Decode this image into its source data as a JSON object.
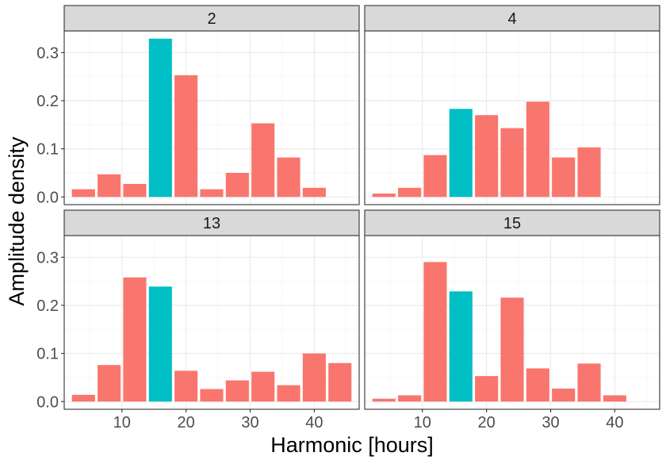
{
  "colors": {
    "bar_default": "#F8766D",
    "bar_highlight": "#00BFC4",
    "strip_bg": "#D9D9D9",
    "panel_border": "#333333",
    "grid_major": "#EBEBEB",
    "grid_minor": "#F5F5F5",
    "text": "#1A1A1A",
    "tick_text": "#4D4D4D"
  },
  "chart_data": {
    "type": "bar",
    "title": "",
    "xlabel": "Harmonic [hours]",
    "ylabel": "Amplitude density",
    "xlim": [
      1,
      47
    ],
    "ylim": [
      -0.016,
      0.345
    ],
    "x_ticks": [
      10,
      20,
      30,
      40
    ],
    "x_tick_labels": [
      "10",
      "20",
      "30",
      "40"
    ],
    "y_ticks": [
      0.0,
      0.1,
      0.2,
      0.3
    ],
    "y_tick_labels": [
      "0.0",
      "0.1",
      "0.2",
      "0.3"
    ],
    "grid": true,
    "legend": "none",
    "bar_width": 3.6,
    "highlight_rule": "bar centered at x = 16 is drawn in the highlight color",
    "facets": [
      {
        "label": "2",
        "x": [
          4,
          8,
          12,
          16,
          20,
          24,
          28,
          32,
          36,
          40
        ],
        "values": [
          0.016,
          0.047,
          0.027,
          0.329,
          0.253,
          0.016,
          0.05,
          0.153,
          0.082,
          0.019
        ]
      },
      {
        "label": "4",
        "x": [
          4,
          8,
          12,
          16,
          20,
          24,
          28,
          32,
          36
        ],
        "values": [
          0.007,
          0.019,
          0.087,
          0.183,
          0.17,
          0.143,
          0.198,
          0.082,
          0.103
        ]
      },
      {
        "label": "13",
        "x": [
          4,
          8,
          12,
          16,
          20,
          24,
          28,
          32,
          36,
          40,
          44
        ],
        "values": [
          0.014,
          0.076,
          0.258,
          0.239,
          0.064,
          0.026,
          0.044,
          0.062,
          0.034,
          0.1,
          0.08
        ]
      },
      {
        "label": "15",
        "x": [
          4,
          8,
          12,
          16,
          20,
          24,
          28,
          32,
          36,
          40
        ],
        "values": [
          0.006,
          0.013,
          0.29,
          0.229,
          0.053,
          0.216,
          0.069,
          0.027,
          0.079,
          0.013
        ]
      }
    ]
  }
}
